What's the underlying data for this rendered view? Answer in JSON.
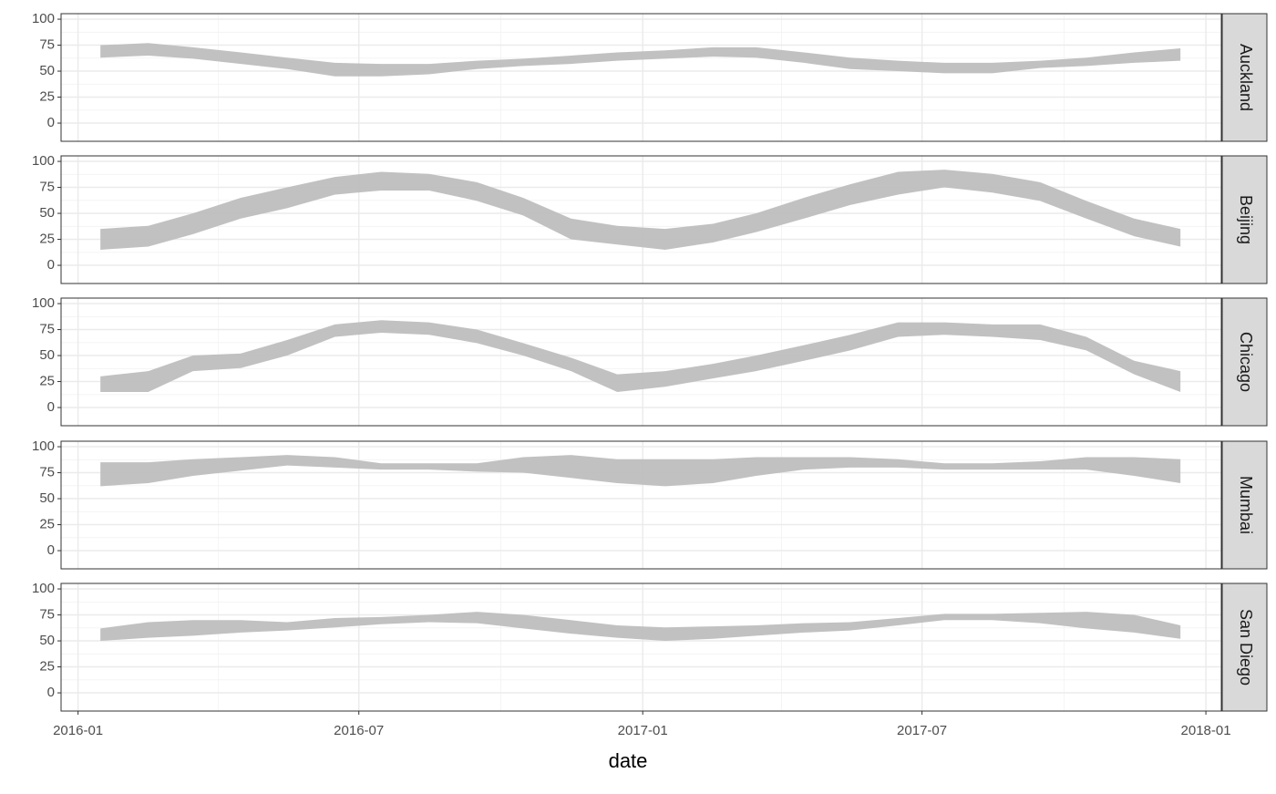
{
  "chart_data": {
    "type": "ribbon",
    "x": [
      "2016-01",
      "2016-02",
      "2016-03",
      "2016-04",
      "2016-05",
      "2016-06",
      "2016-07",
      "2016-08",
      "2016-09",
      "2016-10",
      "2016-11",
      "2016-12",
      "2017-01",
      "2017-02",
      "2017-03",
      "2017-04",
      "2017-05",
      "2017-06",
      "2017-07",
      "2017-08",
      "2017-09",
      "2017-10",
      "2017-11",
      "2017-12"
    ],
    "panels": [
      {
        "name": "Auckland",
        "lower": [
          63,
          65,
          62,
          57,
          52,
          45,
          45,
          47,
          52,
          55,
          57,
          60,
          62,
          64,
          63,
          58,
          52,
          50,
          48,
          48,
          53,
          55,
          58,
          60
        ],
        "upper": [
          75,
          77,
          73,
          68,
          63,
          58,
          57,
          57,
          60,
          62,
          65,
          68,
          70,
          73,
          73,
          68,
          63,
          60,
          58,
          58,
          60,
          63,
          68,
          72
        ]
      },
      {
        "name": "Beijing",
        "lower": [
          15,
          18,
          30,
          45,
          55,
          68,
          72,
          72,
          62,
          48,
          25,
          20,
          15,
          22,
          32,
          45,
          58,
          68,
          75,
          70,
          62,
          45,
          28,
          18
        ],
        "upper": [
          35,
          38,
          50,
          65,
          75,
          85,
          90,
          88,
          80,
          65,
          45,
          38,
          35,
          40,
          50,
          65,
          78,
          90,
          92,
          88,
          80,
          62,
          45,
          35
        ]
      },
      {
        "name": "Chicago",
        "lower": [
          15,
          15,
          35,
          38,
          50,
          68,
          72,
          70,
          62,
          50,
          35,
          15,
          20,
          28,
          35,
          45,
          55,
          68,
          70,
          68,
          65,
          55,
          32,
          15
        ],
        "upper": [
          30,
          35,
          50,
          52,
          65,
          80,
          84,
          82,
          75,
          62,
          48,
          32,
          35,
          42,
          50,
          60,
          70,
          82,
          82,
          80,
          80,
          68,
          45,
          35
        ]
      },
      {
        "name": "Mumbai",
        "lower": [
          62,
          65,
          72,
          77,
          82,
          80,
          78,
          78,
          76,
          75,
          70,
          65,
          62,
          65,
          72,
          78,
          80,
          80,
          78,
          78,
          78,
          78,
          72,
          65
        ],
        "upper": [
          85,
          85,
          88,
          90,
          92,
          90,
          84,
          84,
          84,
          90,
          92,
          88,
          88,
          88,
          90,
          90,
          90,
          88,
          84,
          84,
          86,
          90,
          90,
          88
        ]
      },
      {
        "name": "San Diego",
        "lower": [
          50,
          53,
          55,
          58,
          60,
          63,
          66,
          68,
          67,
          62,
          57,
          53,
          50,
          52,
          55,
          58,
          60,
          65,
          70,
          70,
          67,
          62,
          58,
          52
        ],
        "upper": [
          62,
          68,
          70,
          70,
          68,
          72,
          73,
          75,
          78,
          75,
          70,
          65,
          63,
          64,
          65,
          67,
          68,
          72,
          76,
          76,
          77,
          78,
          75,
          65
        ]
      }
    ],
    "color": "#bebebe",
    "x_label": "date",
    "xlim": [
      "2015-12-21",
      "2018-01-11"
    ],
    "xticks": [
      "2016-01",
      "2016-07",
      "2017-01",
      "2017-07",
      "2018-01"
    ],
    "x_minor_ticks": [
      "2016-04",
      "2016-10",
      "2017-04",
      "2017-10"
    ],
    "ylim": [
      -17.5,
      105.3
    ],
    "yticks": [
      0,
      25,
      50,
      75,
      100
    ],
    "y_minor_ticks": [
      12.5,
      37.5,
      62.5,
      87.5
    ],
    "grid": true
  }
}
